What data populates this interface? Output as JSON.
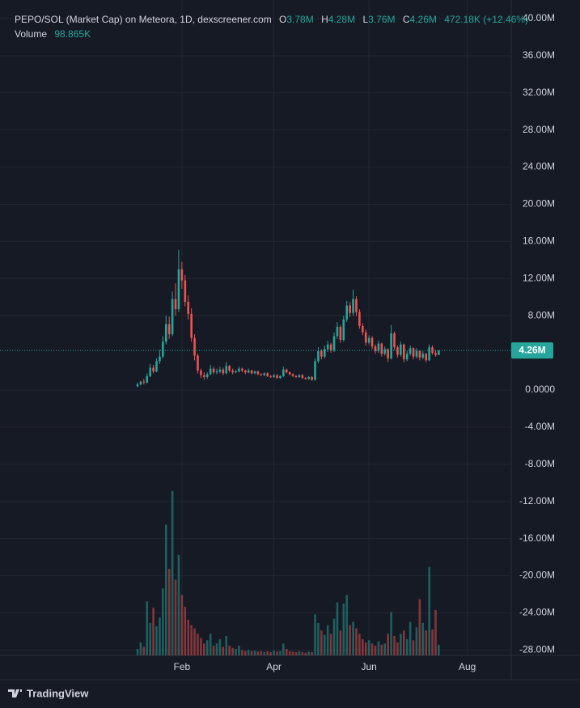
{
  "chart_data": {
    "type": "candlestick",
    "header": {
      "symbol": "PEPO/SOL (Market Cap) on Meteora, 1D, dexscreener.com",
      "o_key": "O",
      "o": "3.78M",
      "h_key": "H",
      "h": "4.28M",
      "l_key": "L",
      "l": "3.76M",
      "c_key": "C",
      "c": "4.26M",
      "change": "472.18K (+12.46%)"
    },
    "categories": [
      null,
      null,
      null,
      null,
      null,
      null,
      null,
      null,
      null,
      null,
      null,
      null,
      null,
      null,
      "Feb",
      null,
      null,
      null,
      null,
      null,
      null,
      null,
      null,
      null,
      null,
      null,
      null,
      null,
      null,
      null,
      null,
      null,
      null,
      null,
      null,
      null,
      null,
      null,
      null,
      null,
      null,
      null,
      null,
      "Apr",
      null,
      null,
      null,
      null,
      null,
      null,
      null,
      null,
      null,
      null,
      null,
      null,
      null,
      null,
      null,
      null,
      null,
      null,
      null,
      null,
      null,
      null,
      null,
      null,
      null,
      null,
      null,
      null,
      null,
      "Jun",
      null,
      null,
      null,
      null,
      null,
      null,
      null,
      null,
      null,
      null,
      null,
      null,
      null,
      null,
      null,
      null,
      null,
      null,
      null,
      null,
      null,
      null,
      null,
      null,
      null,
      null,
      null,
      null,
      null,
      null,
      "Aug"
    ],
    "open": [
      0.4,
      0.6,
      0.9,
      0.8,
      1.5,
      2.4,
      2.0,
      3.1,
      3.6,
      5.2,
      7.1,
      6.0,
      9.8,
      8.7,
      13.0,
      11.8,
      9.5,
      8.2,
      5.6,
      3.7,
      2.1,
      1.6,
      1.4,
      1.7,
      2.3,
      1.9,
      2.0,
      2.2,
      1.8,
      2.6,
      2.1,
      1.9,
      2.0,
      2.3,
      2.1,
      1.9,
      2.1,
      1.8,
      2.0,
      1.7,
      1.6,
      1.8,
      1.5,
      1.4,
      1.6,
      1.3,
      1.5,
      2.2,
      1.9,
      1.7,
      1.5,
      1.4,
      1.6,
      1.3,
      1.2,
      1.4,
      1.1,
      3.1,
      4.2,
      3.6,
      4.4,
      4.9,
      4.3,
      5.8,
      6.8,
      5.4,
      7.6,
      9.1,
      8.3,
      9.8,
      8.4,
      6.9,
      6.2,
      5.1,
      5.6,
      4.7,
      4.2,
      5.0,
      3.9,
      4.4,
      3.4,
      6.1,
      4.6,
      3.8,
      4.9,
      3.3,
      3.9,
      4.5,
      3.6,
      4.2,
      3.5,
      3.9,
      3.2,
      4.6,
      4.0,
      3.78,
      null,
      null,
      null,
      null,
      null,
      null,
      null,
      null,
      null
    ],
    "high": [
      0.8,
      1.0,
      1.2,
      1.8,
      2.8,
      2.7,
      3.4,
      4.3,
      5.8,
      8.0,
      7.9,
      10.6,
      11.5,
      15.1,
      13.8,
      12.4,
      10.2,
      8.8,
      6.0,
      3.9,
      2.3,
      1.9,
      1.9,
      2.7,
      2.5,
      2.3,
      2.5,
      2.4,
      3.0,
      2.7,
      2.3,
      2.2,
      2.5,
      2.4,
      2.2,
      2.3,
      2.2,
      2.1,
      2.1,
      1.8,
      1.9,
      1.9,
      1.6,
      1.7,
      1.7,
      1.6,
      2.5,
      2.3,
      2.0,
      1.8,
      1.6,
      1.7,
      1.7,
      1.4,
      1.5,
      1.5,
      3.4,
      4.6,
      4.4,
      4.8,
      5.3,
      5.1,
      6.2,
      7.3,
      7.0,
      8.0,
      9.6,
      9.5,
      10.8,
      10.1,
      8.7,
      7.2,
      6.5,
      5.9,
      5.8,
      4.9,
      5.3,
      5.1,
      4.7,
      4.5,
      7.0,
      6.3,
      4.8,
      5.2,
      5.0,
      4.2,
      4.8,
      4.6,
      4.5,
      4.3,
      4.2,
      4.0,
      4.9,
      4.8,
      4.3,
      4.28,
      null,
      null,
      null,
      null,
      null,
      null,
      null,
      null,
      null
    ],
    "low": [
      0.3,
      0.5,
      0.6,
      0.7,
      1.4,
      1.8,
      1.9,
      2.8,
      3.4,
      4.9,
      5.5,
      5.8,
      8.0,
      8.4,
      10.9,
      9.0,
      7.6,
      5.2,
      3.2,
      1.8,
      1.3,
      1.1,
      1.2,
      1.6,
      1.7,
      1.7,
      1.8,
      1.6,
      1.7,
      1.9,
      1.7,
      1.8,
      1.9,
      1.9,
      1.7,
      1.8,
      1.7,
      1.7,
      1.6,
      1.5,
      1.5,
      1.4,
      1.3,
      1.3,
      1.2,
      1.2,
      1.4,
      1.8,
      1.6,
      1.4,
      1.3,
      1.3,
      1.2,
      1.1,
      1.1,
      1.0,
      1.0,
      2.9,
      3.3,
      3.4,
      4.1,
      4.0,
      4.1,
      5.5,
      5.1,
      5.2,
      7.3,
      7.9,
      8.0,
      8.0,
      6.6,
      5.9,
      4.8,
      4.9,
      4.4,
      3.9,
      4.0,
      3.6,
      3.7,
      3.0,
      3.3,
      4.3,
      3.5,
      3.6,
      3.0,
      3.1,
      3.7,
      3.3,
      3.4,
      3.2,
      3.3,
      3.0,
      3.1,
      3.8,
      3.6,
      3.76,
      null,
      null,
      null,
      null,
      null,
      null,
      null,
      null,
      null
    ],
    "close": [
      0.6,
      0.9,
      0.8,
      1.5,
      2.4,
      2.0,
      3.1,
      3.6,
      5.2,
      7.1,
      6.0,
      9.8,
      8.7,
      13.0,
      11.8,
      9.5,
      8.2,
      5.6,
      3.7,
      2.1,
      1.6,
      1.4,
      1.7,
      2.3,
      1.9,
      2.0,
      2.2,
      1.8,
      2.6,
      2.1,
      1.9,
      2.0,
      2.3,
      2.1,
      1.9,
      2.1,
      1.8,
      2.0,
      1.7,
      1.6,
      1.8,
      1.5,
      1.4,
      1.6,
      1.3,
      1.5,
      2.2,
      1.9,
      1.7,
      1.5,
      1.4,
      1.6,
      1.3,
      1.2,
      1.4,
      1.1,
      3.1,
      4.2,
      3.6,
      4.4,
      4.9,
      4.3,
      5.8,
      6.8,
      5.4,
      7.6,
      9.1,
      8.3,
      9.8,
      8.4,
      6.9,
      6.2,
      5.1,
      5.6,
      4.7,
      4.2,
      5.0,
      3.9,
      4.4,
      3.4,
      6.1,
      4.6,
      3.8,
      4.9,
      3.3,
      3.9,
      4.5,
      3.6,
      4.2,
      3.5,
      3.9,
      3.2,
      4.6,
      4.0,
      3.78,
      4.26,
      null,
      null,
      null,
      null,
      null,
      null,
      null,
      null,
      null
    ],
    "volume": {
      "name": "Volume",
      "value_label": "98.865K",
      "axis": "y2",
      "values": [
        60,
        120,
        80,
        500,
        300,
        440,
        270,
        350,
        620,
        1210,
        800,
        1520,
        700,
        930,
        560,
        450,
        330,
        280,
        250,
        200,
        160,
        110,
        140,
        200,
        90,
        110,
        150,
        80,
        180,
        90,
        70,
        60,
        90,
        50,
        40,
        50,
        40,
        45,
        35,
        40,
        30,
        40,
        30,
        45,
        35,
        40,
        110,
        60,
        40,
        35,
        30,
        40,
        30,
        25,
        35,
        30,
        380,
        300,
        230,
        190,
        280,
        200,
        340,
        490,
        230,
        480,
        560,
        280,
        310,
        250,
        200,
        150,
        120,
        140,
        110,
        90,
        130,
        100,
        110,
        200,
        400,
        180,
        120,
        200,
        230,
        150,
        310,
        140,
        260,
        520,
        300,
        230,
        820,
        240,
        420,
        98.865,
        null,
        null,
        null,
        null,
        null,
        null,
        null,
        null,
        null
      ]
    },
    "up_color": "#26a69a",
    "down_color": "#ef5350",
    "ylim": [
      -28.58,
      42.0
    ],
    "yticks": [
      {
        "value": 40,
        "label": "40.00M"
      },
      {
        "value": 36,
        "label": "36.00M"
      },
      {
        "value": 32,
        "label": "32.00M"
      },
      {
        "value": 28,
        "label": "28.00M"
      },
      {
        "value": 24,
        "label": "24.00M"
      },
      {
        "value": 20,
        "label": "20.00M"
      },
      {
        "value": 16,
        "label": "16.00M"
      },
      {
        "value": 12,
        "label": "12.00M"
      },
      {
        "value": 8,
        "label": "8.00M"
      },
      {
        "value": 0,
        "label": "0.0000"
      },
      {
        "value": -4,
        "label": "-4.00M"
      },
      {
        "value": -8,
        "label": "-8.00M"
      },
      {
        "value": -12,
        "label": "-12.00M"
      },
      {
        "value": -16,
        "label": "-16.00M"
      },
      {
        "value": -20,
        "label": "-20.00M"
      },
      {
        "value": -24,
        "label": "-24.00M"
      },
      {
        "value": -28,
        "label": "-28.00M"
      }
    ],
    "y2lim": [
      0,
      6065
    ],
    "last_price": {
      "value": 4.26,
      "label": "4.26M"
    },
    "grid": true,
    "branding": "TradingView"
  }
}
